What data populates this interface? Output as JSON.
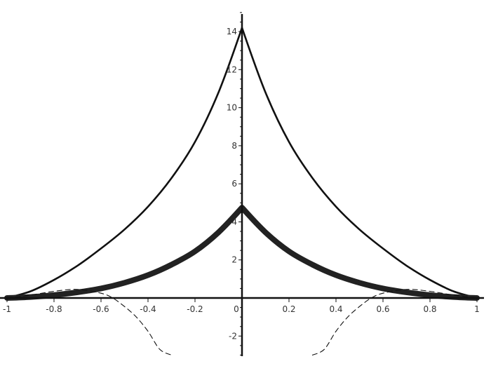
{
  "chart_data": {
    "type": "line",
    "title": "",
    "xlabel": "",
    "ylabel": "",
    "xlim": [
      -1,
      1
    ],
    "ylim": [
      -3,
      15
    ],
    "grid": false,
    "legend": "none",
    "x_ticks": [
      -1,
      -0.8,
      -0.6,
      -0.4,
      -0.2,
      0,
      0.2,
      0.4,
      0.6,
      0.8,
      1
    ],
    "x_tick_labels": [
      "-1",
      "-0.8",
      "-0.6",
      "-0.4",
      "-0.2",
      "0",
      "0.2",
      "0.4",
      "0.6",
      "0.8",
      "1"
    ],
    "y_ticks": [
      -2,
      2,
      4,
      6,
      8,
      10,
      12,
      14
    ],
    "y_tick_labels": [
      "-2",
      "2",
      "4",
      "6",
      "8",
      "10",
      "12",
      "14"
    ],
    "series": [
      {
        "style": "solid-thin",
        "color": "#111111",
        "x": [
          -1,
          -0.9,
          -0.8,
          -0.7,
          -0.6,
          -0.5,
          -0.4,
          -0.3,
          -0.2,
          -0.1,
          0,
          0.1,
          0.2,
          0.3,
          0.4,
          0.5,
          0.6,
          0.7,
          0.8,
          0.9,
          1
        ],
        "y": [
          0,
          0.35,
          0.95,
          1.7,
          2.6,
          3.6,
          4.8,
          6.3,
          8.2,
          10.8,
          14.2,
          10.8,
          8.2,
          6.3,
          4.8,
          3.6,
          2.6,
          1.7,
          0.95,
          0.35,
          0
        ]
      },
      {
        "style": "solid-thick",
        "color": "#222222",
        "x": [
          -1,
          -0.9,
          -0.8,
          -0.7,
          -0.6,
          -0.5,
          -0.4,
          -0.3,
          -0.2,
          -0.1,
          0,
          0.1,
          0.2,
          0.3,
          0.4,
          0.5,
          0.6,
          0.7,
          0.8,
          0.9,
          1
        ],
        "y": [
          0,
          0.05,
          0.15,
          0.3,
          0.5,
          0.8,
          1.2,
          1.75,
          2.45,
          3.45,
          4.75,
          3.45,
          2.45,
          1.75,
          1.2,
          0.8,
          0.5,
          0.3,
          0.15,
          0.05,
          0
        ]
      },
      {
        "style": "dashed",
        "color": "#111111",
        "x": [
          -1,
          -0.9,
          -0.8,
          -0.7,
          -0.6,
          -0.55,
          -0.5,
          -0.45,
          -0.4,
          -0.35,
          -0.3
        ],
        "y": [
          0,
          0.15,
          0.35,
          0.45,
          0.25,
          0,
          -0.45,
          -1.0,
          -1.75,
          -2.7,
          -3.0
        ]
      },
      {
        "style": "dashed",
        "color": "#111111",
        "x": [
          0.3,
          0.35,
          0.4,
          0.45,
          0.5,
          0.55,
          0.6,
          0.7,
          0.8,
          0.9,
          1
        ],
        "y": [
          -3.0,
          -2.7,
          -1.75,
          -1.0,
          -0.45,
          0,
          0.25,
          0.45,
          0.35,
          0.15,
          0
        ]
      }
    ]
  }
}
